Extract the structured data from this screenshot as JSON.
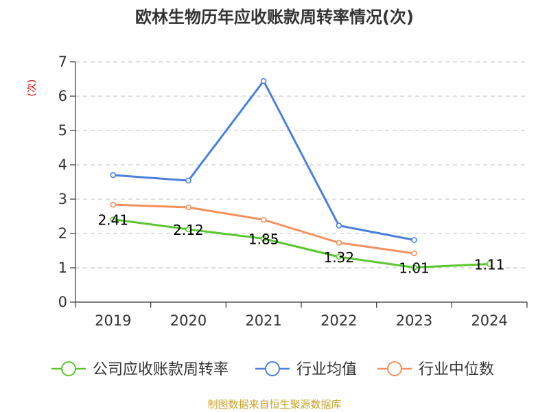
{
  "chart_data": {
    "type": "line",
    "title": "欧林生物历年应收账款周转率情况(次)",
    "ylabel": "(次)",
    "xlabel": "",
    "categories": [
      "2019",
      "2020",
      "2021",
      "2022",
      "2023",
      "2024"
    ],
    "ylim": [
      0,
      7
    ],
    "yticks": [
      "0",
      "1",
      "2",
      "3",
      "4",
      "5",
      "6",
      "7"
    ],
    "grid": true,
    "legend_position": "bottom",
    "series": [
      {
        "name": "公司应收账款周转率",
        "color": "#5bc72e",
        "values": [
          2.41,
          2.12,
          1.85,
          1.32,
          1.01,
          1.11
        ],
        "labels": [
          "2.41",
          "2.12",
          "1.85",
          "1.32",
          "1.01",
          "1.11"
        ]
      },
      {
        "name": "行业均值",
        "color": "#4a7fdc",
        "values": [
          3.7,
          3.54,
          6.44,
          2.23,
          1.81,
          null
        ]
      },
      {
        "name": "行业中位数",
        "color": "#f5905a",
        "values": [
          2.84,
          2.76,
          2.4,
          1.73,
          1.42,
          null
        ]
      }
    ],
    "source": "制图数据来自恒生聚源数据库"
  }
}
